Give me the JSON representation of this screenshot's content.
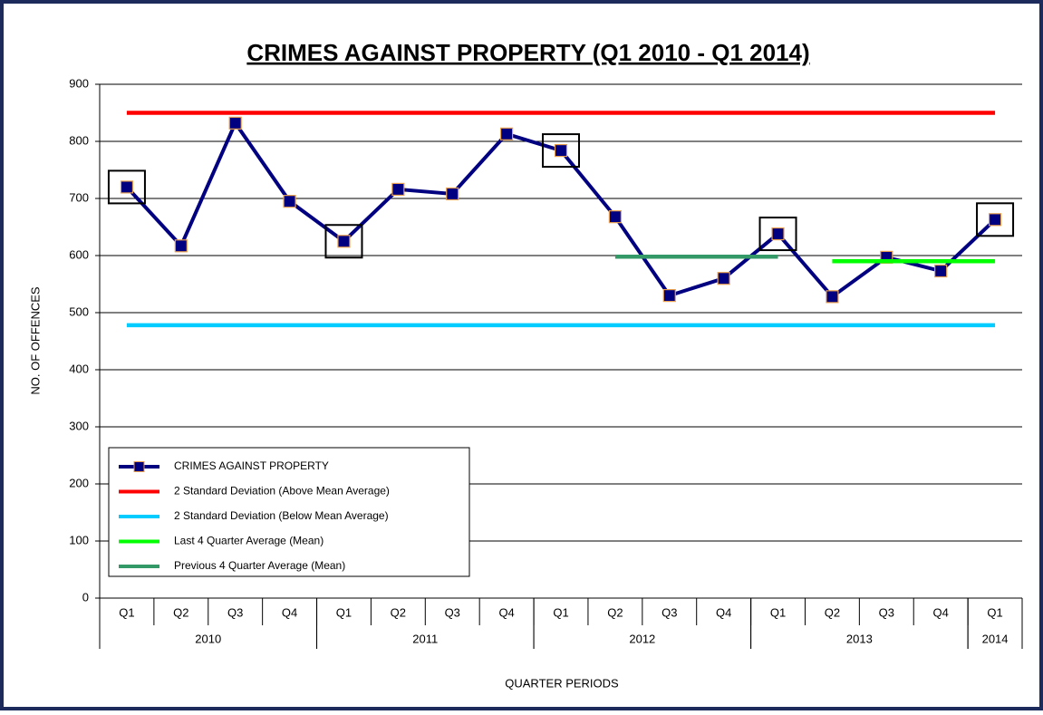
{
  "chart_data": {
    "type": "line",
    "title": "CRIMES AGAINST PROPERTY (Q1 2010 - Q1 2014)",
    "y_label": "NO. OF OFFENCES",
    "x_label": "QUARTER PERIODS",
    "categories": [
      "Q1",
      "Q2",
      "Q3",
      "Q4",
      "Q1",
      "Q2",
      "Q3",
      "Q4",
      "Q1",
      "Q2",
      "Q3",
      "Q4",
      "Q1",
      "Q2",
      "Q3",
      "Q4",
      "Q1"
    ],
    "year_groups": [
      {
        "label": "2010",
        "from": 0,
        "to": 3
      },
      {
        "label": "2011",
        "from": 4,
        "to": 7
      },
      {
        "label": "2012",
        "from": 8,
        "to": 11
      },
      {
        "label": "2013",
        "from": 12,
        "to": 15
      },
      {
        "label": "2014",
        "from": 16,
        "to": 16
      }
    ],
    "series": [
      {
        "name": "CRIMES AGAINST PROPERTY",
        "color": "#000080",
        "marker_edge": "#e8a050",
        "values": [
          720,
          617,
          832,
          695,
          625,
          716,
          708,
          813,
          784,
          668,
          530,
          560,
          638,
          528,
          597,
          573,
          663
        ]
      },
      {
        "name": "2 Standard Deviation (Above Mean Average)",
        "color": "#ff0000",
        "values": [
          850,
          850,
          850,
          850,
          850,
          850,
          850,
          850,
          850,
          850,
          850,
          850,
          850,
          850,
          850,
          850,
          850
        ]
      },
      {
        "name": "2 Standard Deviation (Below Mean Average)",
        "color": "#00ccff",
        "values": [
          478,
          478,
          478,
          478,
          478,
          478,
          478,
          478,
          478,
          478,
          478,
          478,
          478,
          478,
          478,
          478,
          478
        ]
      },
      {
        "name": "Last 4 Quarter Average (Mean)",
        "color": "#00ff00",
        "values": [
          null,
          null,
          null,
          null,
          null,
          null,
          null,
          null,
          null,
          null,
          null,
          null,
          null,
          590,
          590,
          590,
          590
        ]
      },
      {
        "name": "Previous 4 Quarter Average (Mean)",
        "color": "#339966",
        "values": [
          null,
          null,
          null,
          null,
          null,
          null,
          null,
          null,
          null,
          598,
          598,
          598,
          598,
          null,
          null,
          null,
          null
        ]
      }
    ],
    "highlighted": [
      0,
      4,
      8,
      12,
      16
    ],
    "ylim": [
      0,
      900
    ],
    "yticks": [
      0,
      100,
      200,
      300,
      400,
      500,
      600,
      700,
      800,
      900
    ],
    "grid": true,
    "legend": "lower left"
  }
}
